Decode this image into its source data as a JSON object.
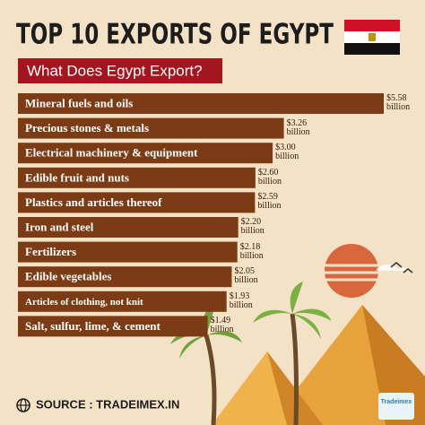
{
  "chart_data": {
    "type": "bar",
    "orientation": "horizontal",
    "title": "TOP 10 EXPORTS OF EGYPT",
    "subtitle": "What Does Egypt Export?",
    "categories": [
      "Mineral fuels and oils",
      "Precious stones & metals",
      "Electrical machinery & equipment",
      "Edible fruit and nuts",
      "Plastics and articles thereof",
      "Iron and steel",
      "Fertilizers",
      "Edible vegetables",
      "Articles of clothing, not knit",
      "Salt, sulfur, lime, & cement"
    ],
    "values": [
      5.58,
      3.26,
      3.0,
      2.6,
      2.59,
      2.2,
      2.18,
      2.05,
      1.93,
      1.49
    ],
    "value_labels": [
      "$5.58 billion",
      "$3.26 billion",
      "$3.00 billion",
      "$2.60 billion",
      "$2.59 billion",
      "$2.20 billion",
      "$2.18 billion",
      "$2.05 billion",
      "$1.93 billion",
      "$1.49 billion"
    ],
    "color": "#7b3b14"
  },
  "source": "SOURCE : TRADEIMEX.IN",
  "logo": "Tradeimex"
}
